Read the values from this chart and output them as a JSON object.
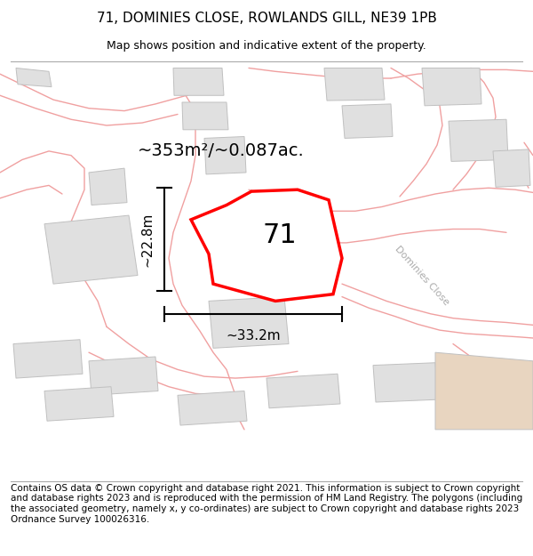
{
  "title": "71, DOMINIES CLOSE, ROWLANDS GILL, NE39 1PB",
  "subtitle": "Map shows position and indicative extent of the property.",
  "footer": "Contains OS data © Crown copyright and database right 2021. This information is subject to Crown copyright and database rights 2023 and is reproduced with the permission of HM Land Registry. The polygons (including the associated geometry, namely x, y co-ordinates) are subject to Crown copyright and database rights 2023 Ordnance Survey 100026316.",
  "area_label": "~353m²/~0.087ac.",
  "property_number": "71",
  "dim_width": "~33.2m",
  "dim_height": "~22.8m",
  "street_label": "Dominies Close",
  "bg_color": "#ffffff",
  "plot_edge_color": "#ff0000",
  "road_color": "#f0a0a0",
  "building_fill": "#e0e0e0",
  "building_edge": "#c0c0c0",
  "title_fontsize": 11,
  "subtitle_fontsize": 9,
  "footer_fontsize": 7.5,
  "tan_color": "#e8d5c0"
}
